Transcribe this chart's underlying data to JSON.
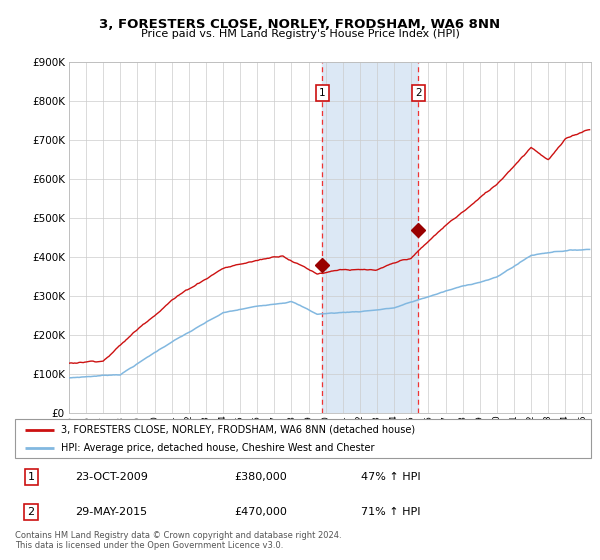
{
  "title": "3, FORESTERS CLOSE, NORLEY, FRODSHAM, WA6 8NN",
  "subtitle": "Price paid vs. HM Land Registry's House Price Index (HPI)",
  "legend_line1": "3, FORESTERS CLOSE, NORLEY, FRODSHAM, WA6 8NN (detached house)",
  "legend_line2": "HPI: Average price, detached house, Cheshire West and Chester",
  "transaction1_label": "1",
  "transaction1_date": "23-OCT-2009",
  "transaction1_price": "£380,000",
  "transaction1_hpi": "47% ↑ HPI",
  "transaction2_label": "2",
  "transaction2_date": "29-MAY-2015",
  "transaction2_price": "£470,000",
  "transaction2_hpi": "71% ↑ HPI",
  "footer": "Contains HM Land Registry data © Crown copyright and database right 2024.\nThis data is licensed under the Open Government Licence v3.0.",
  "hpi_color": "#82b8e0",
  "price_color": "#cc1111",
  "marker_color": "#990000",
  "background_color": "#ffffff",
  "grid_color": "#cccccc",
  "shade_color": "#dce8f5",
  "vline_color": "#ee3333",
  "ylim": [
    0,
    900000
  ],
  "yticks": [
    0,
    100000,
    200000,
    300000,
    400000,
    500000,
    600000,
    700000,
    800000,
    900000
  ],
  "year_start": 1995,
  "year_end": 2025,
  "transaction1_year": 2009.81,
  "transaction2_year": 2015.42
}
